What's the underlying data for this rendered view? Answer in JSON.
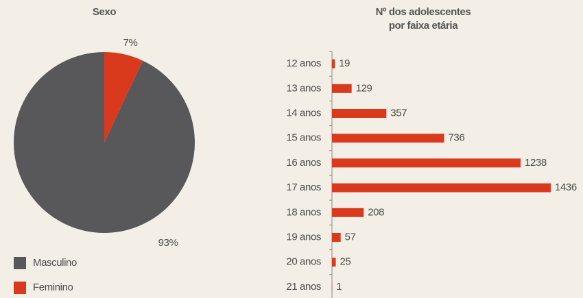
{
  "chart_data": [
    {
      "type": "pie",
      "title": "Sexo",
      "categories": [
        "Masculino",
        "Feminino"
      ],
      "values": [
        93,
        7
      ],
      "value_labels": [
        "93%",
        "7%"
      ],
      "colors": [
        "#58585a",
        "#d93a1e"
      ]
    },
    {
      "type": "hbar",
      "title": [
        "Nº dos adolescentes",
        "por faixa etária"
      ],
      "categories": [
        "12 anos",
        "13 anos",
        "14 anos",
        "15 anos",
        "16 anos",
        "17 anos",
        "18 anos",
        "19 anos",
        "20 anos",
        "21 anos"
      ],
      "values": [
        19,
        129,
        357,
        736,
        1238,
        1436,
        208,
        57,
        25,
        1
      ],
      "color": "#d93a1e"
    }
  ]
}
